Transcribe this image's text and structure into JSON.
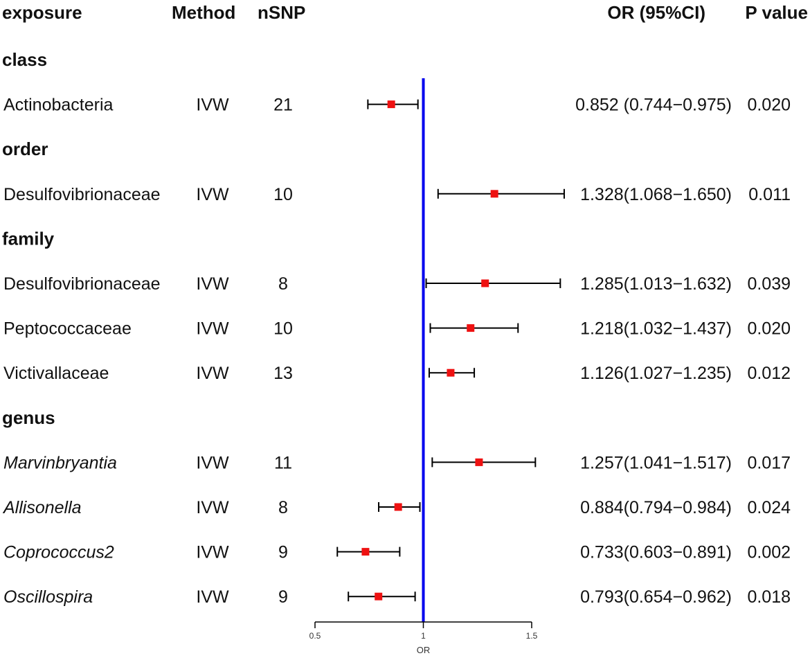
{
  "chart_data": {
    "type": "forest",
    "headers": {
      "exposure": "exposure",
      "method": "Method",
      "nsnp": "nSNP",
      "or_ci": "OR (95%CI)",
      "pvalue": "P value"
    },
    "x_axis": {
      "label": "OR",
      "ticks": [
        0.5,
        1,
        1.5
      ],
      "tick_labels": [
        "0.5",
        "1",
        "1.5"
      ],
      "range": [
        0.5,
        1.5
      ],
      "reference_line": 1,
      "reference_color": "#0000ee"
    },
    "marker_color": "#ee1111",
    "groups": [
      {
        "name": "class",
        "rows": [
          {
            "exposure": "Actinobacteria",
            "italic": false,
            "method": "IVW",
            "nsnp": "21",
            "or": 0.852,
            "lower": 0.744,
            "upper": 0.975,
            "or_text": "0.852 (0.744−0.975)",
            "p": "0.020"
          }
        ]
      },
      {
        "name": "order",
        "rows": [
          {
            "exposure": "Desulfovibrionaceae",
            "italic": false,
            "method": "IVW",
            "nsnp": "10",
            "or": 1.328,
            "lower": 1.068,
            "upper": 1.65,
            "or_text": "1.328(1.068−1.650)",
            "p": "0.011"
          }
        ]
      },
      {
        "name": "family",
        "rows": [
          {
            "exposure": "Desulfovibrionaceae",
            "italic": false,
            "method": "IVW",
            "nsnp": "8",
            "or": 1.285,
            "lower": 1.013,
            "upper": 1.632,
            "or_text": "1.285(1.013−1.632)",
            "p": "0.039"
          },
          {
            "exposure": "Peptococcaceae",
            "italic": false,
            "method": "IVW",
            "nsnp": "10",
            "or": 1.218,
            "lower": 1.032,
            "upper": 1.437,
            "or_text": "1.218(1.032−1.437)",
            "p": "0.020"
          },
          {
            "exposure": "Victivallaceae",
            "italic": false,
            "method": "IVW",
            "nsnp": "13",
            "or": 1.126,
            "lower": 1.027,
            "upper": 1.235,
            "or_text": "1.126(1.027−1.235)",
            "p": "0.012"
          }
        ]
      },
      {
        "name": "genus",
        "rows": [
          {
            "exposure": "Marvinbryantia",
            "italic": true,
            "method": "IVW",
            "nsnp": "11",
            "or": 1.257,
            "lower": 1.041,
            "upper": 1.517,
            "or_text": "1.257(1.041−1.517)",
            "p": "0.017"
          },
          {
            "exposure": "Allisonella",
            "italic": true,
            "method": "IVW",
            "nsnp": "8",
            "or": 0.884,
            "lower": 0.794,
            "upper": 0.984,
            "or_text": "0.884(0.794−0.984)",
            "p": "0.024"
          },
          {
            "exposure": "Coprococcus2",
            "italic": true,
            "method": "IVW",
            "nsnp": "9",
            "or": 0.733,
            "lower": 0.603,
            "upper": 0.891,
            "or_text": "0.733(0.603−0.891)",
            "p": "0.002"
          },
          {
            "exposure": "Oscillospira",
            "italic": true,
            "method": "IVW",
            "nsnp": "9",
            "or": 0.793,
            "lower": 0.654,
            "upper": 0.962,
            "or_text": "0.793(0.654−0.962)",
            "p": "0.018"
          }
        ]
      }
    ]
  }
}
